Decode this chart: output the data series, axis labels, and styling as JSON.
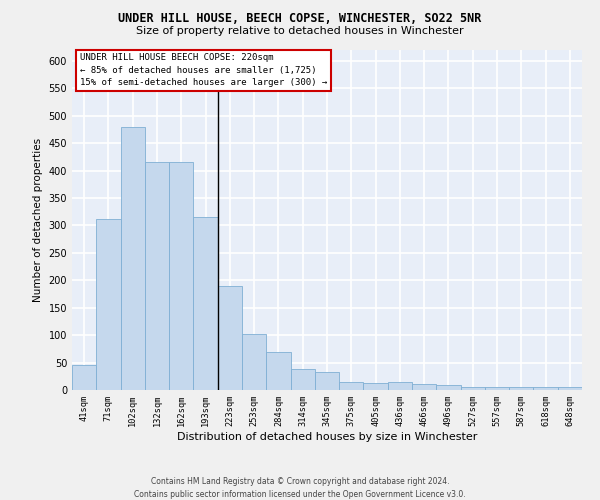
{
  "title": "UNDER HILL HOUSE, BEECH COPSE, WINCHESTER, SO22 5NR",
  "subtitle": "Size of property relative to detached houses in Winchester",
  "xlabel": "Distribution of detached houses by size in Winchester",
  "ylabel": "Number of detached properties",
  "categories": [
    "41sqm",
    "71sqm",
    "102sqm",
    "132sqm",
    "162sqm",
    "193sqm",
    "223sqm",
    "253sqm",
    "284sqm",
    "314sqm",
    "345sqm",
    "375sqm",
    "405sqm",
    "436sqm",
    "466sqm",
    "496sqm",
    "527sqm",
    "557sqm",
    "587sqm",
    "618sqm",
    "648sqm"
  ],
  "values": [
    45,
    311,
    480,
    415,
    415,
    315,
    190,
    103,
    70,
    38,
    32,
    14,
    13,
    15,
    11,
    9,
    5,
    5,
    5,
    5,
    5
  ],
  "bar_color": "#c5d8ed",
  "bar_edge_color": "#7fafd4",
  "vline_x_index": 6,
  "ylim_max": 620,
  "yticks": [
    0,
    50,
    100,
    150,
    200,
    250,
    300,
    350,
    400,
    450,
    500,
    550,
    600
  ],
  "annotation_line1": "UNDER HILL HOUSE BEECH COPSE: 220sqm",
  "annotation_line2": "← 85% of detached houses are smaller (1,725)",
  "annotation_line3": "15% of semi-detached houses are larger (300) →",
  "plot_bg_color": "#e8eef8",
  "fig_bg_color": "#f0f0f0",
  "grid_color": "#ffffff",
  "footer_line1": "Contains HM Land Registry data © Crown copyright and database right 2024.",
  "footer_line2": "Contains public sector information licensed under the Open Government Licence v3.0."
}
